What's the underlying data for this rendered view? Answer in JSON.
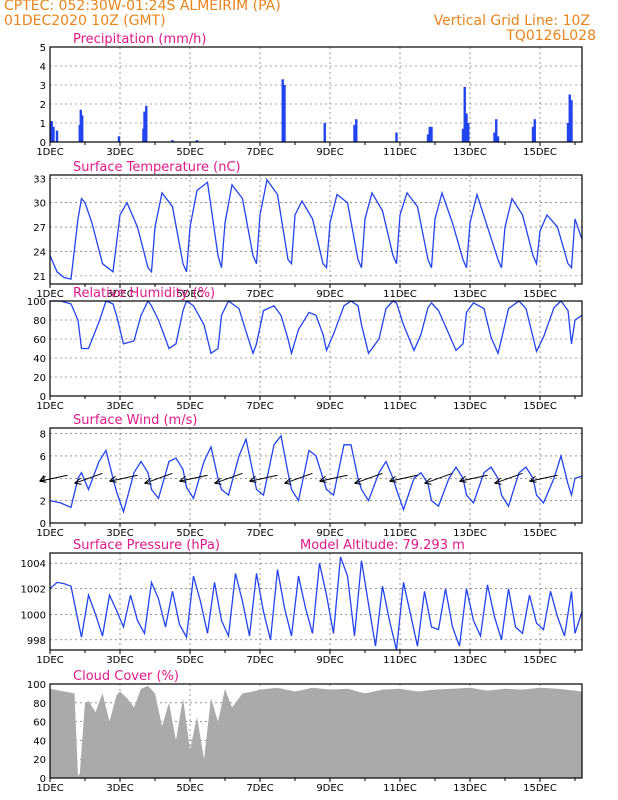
{
  "header": {
    "line1_left": "CPTEC:   052:30W-01:24S   ALMEIRIM (PA)",
    "line2_left": "01DEC2020 10Z (GMT)",
    "line1_right": "Vertical Grid Line: 10Z",
    "line2_right": "TQ0126L028",
    "altitude": "Model Altitude: 79.293 m"
  },
  "colors": {
    "header": "#e8841a",
    "title": "#e0198a",
    "line": "#2244ee",
    "cloud": "#aaaaaa",
    "wind": "#000000"
  },
  "x_axis": {
    "day_range": [
      1,
      16.2
    ],
    "tick_labels": [
      "1DEC",
      "3DEC",
      "5DEC",
      "7DEC",
      "9DEC",
      "11DEC",
      "13DEC",
      "15DEC"
    ],
    "tick_days": [
      1,
      3,
      5,
      7,
      9,
      11,
      13,
      15
    ]
  },
  "chart_data": [
    {
      "type": "bar",
      "title": "Precipitation (mm/h)",
      "ylim": [
        0,
        5
      ],
      "yticks": [
        0,
        1,
        2,
        3,
        4,
        5
      ],
      "bars": [
        [
          1.05,
          1.1
        ],
        [
          1.1,
          0.8
        ],
        [
          1.2,
          0.6
        ],
        [
          1.85,
          0.9
        ],
        [
          1.88,
          1.7
        ],
        [
          1.92,
          1.4
        ],
        [
          2.97,
          0.3
        ],
        [
          3.67,
          0.7
        ],
        [
          3.7,
          1.6
        ],
        [
          3.75,
          1.9
        ],
        [
          4.5,
          0.1
        ],
        [
          5.2,
          0.1
        ],
        [
          7.65,
          3.3
        ],
        [
          7.7,
          3.0
        ],
        [
          8.85,
          1.0
        ],
        [
          9.7,
          0.9
        ],
        [
          9.75,
          1.2
        ],
        [
          10.9,
          0.5
        ],
        [
          11.8,
          0.4
        ],
        [
          11.85,
          0.8
        ],
        [
          11.9,
          0.8
        ],
        [
          12.8,
          0.7
        ],
        [
          12.85,
          2.9
        ],
        [
          12.9,
          1.5
        ],
        [
          12.95,
          1.0
        ],
        [
          13.7,
          0.5
        ],
        [
          13.75,
          1.2
        ],
        [
          13.8,
          0.3
        ],
        [
          14.8,
          0.8
        ],
        [
          14.85,
          1.2
        ],
        [
          15.8,
          1.0
        ],
        [
          15.85,
          2.5
        ],
        [
          15.9,
          2.2
        ]
      ]
    },
    {
      "type": "line",
      "title": "Surface Temperature (nC)",
      "ylim": [
        20,
        33.4
      ],
      "yticks": [
        21,
        24,
        27,
        30,
        33
      ],
      "x": [
        1.0,
        1.2,
        1.4,
        1.6,
        1.8,
        1.9,
        2.0,
        2.2,
        2.5,
        2.8,
        2.9,
        3.0,
        3.2,
        3.5,
        3.8,
        3.9,
        4.0,
        4.2,
        4.5,
        4.8,
        4.9,
        5.0,
        5.2,
        5.5,
        5.8,
        5.9,
        6.0,
        6.2,
        6.5,
        6.8,
        6.9,
        7.0,
        7.2,
        7.5,
        7.8,
        7.9,
        8.0,
        8.2,
        8.5,
        8.8,
        8.9,
        9.0,
        9.2,
        9.5,
        9.8,
        9.9,
        10.0,
        10.2,
        10.5,
        10.8,
        10.9,
        11.0,
        11.2,
        11.5,
        11.8,
        11.9,
        12.0,
        12.2,
        12.5,
        12.8,
        12.9,
        13.0,
        13.2,
        13.5,
        13.8,
        13.9,
        14.0,
        14.2,
        14.5,
        14.8,
        14.9,
        15.0,
        15.2,
        15.5,
        15.8,
        15.9,
        16.0,
        16.2
      ],
      "y": [
        23.5,
        21.5,
        20.8,
        20.6,
        28.0,
        30.5,
        30.0,
        27.5,
        22.5,
        21.5,
        25.0,
        28.5,
        30.0,
        27.0,
        22.0,
        21.5,
        27.0,
        31.2,
        29.5,
        22.5,
        21.5,
        27.0,
        31.5,
        32.5,
        23.5,
        22.0,
        27.5,
        32.2,
        30.5,
        23.5,
        22.5,
        28.5,
        32.8,
        31.0,
        23.0,
        22.5,
        28.5,
        30.2,
        28.0,
        22.5,
        22.0,
        27.5,
        31.0,
        30.0,
        23.0,
        22.0,
        28.0,
        31.2,
        29.0,
        23.5,
        22.5,
        28.5,
        31.2,
        29.5,
        23.0,
        22.0,
        28.0,
        31.2,
        27.5,
        23.0,
        22.0,
        27.5,
        31.0,
        27.0,
        23.0,
        22.0,
        27.0,
        30.5,
        28.5,
        23.5,
        22.5,
        26.5,
        28.5,
        27.0,
        22.5,
        22.0,
        28.0,
        25.5
      ]
    },
    {
      "type": "line",
      "title": "Relative Humidity (%)",
      "ylim": [
        0,
        100
      ],
      "yticks": [
        0,
        20,
        40,
        60,
        80,
        100
      ],
      "x": [
        1.0,
        1.3,
        1.6,
        1.8,
        1.9,
        2.1,
        2.4,
        2.6,
        2.8,
        2.9,
        3.1,
        3.4,
        3.6,
        3.8,
        3.9,
        4.1,
        4.4,
        4.6,
        4.8,
        4.9,
        5.1,
        5.4,
        5.6,
        5.8,
        5.9,
        6.1,
        6.4,
        6.6,
        6.8,
        6.9,
        7.1,
        7.4,
        7.6,
        7.8,
        7.9,
        8.1,
        8.4,
        8.6,
        8.8,
        8.9,
        9.1,
        9.4,
        9.6,
        9.8,
        9.9,
        10.1,
        10.4,
        10.6,
        10.8,
        10.9,
        11.1,
        11.4,
        11.6,
        11.8,
        11.9,
        12.1,
        12.4,
        12.6,
        12.8,
        12.9,
        13.1,
        13.4,
        13.6,
        13.8,
        13.9,
        14.1,
        14.4,
        14.6,
        14.8,
        14.9,
        15.1,
        15.4,
        15.6,
        15.8,
        15.9,
        16.0,
        16.2
      ],
      "y": [
        100,
        100,
        97,
        80,
        50,
        50,
        78,
        100,
        97,
        85,
        55,
        58,
        85,
        100,
        95,
        80,
        50,
        55,
        90,
        100,
        95,
        75,
        45,
        50,
        85,
        100,
        92,
        68,
        45,
        55,
        90,
        95,
        85,
        60,
        45,
        70,
        88,
        85,
        65,
        48,
        65,
        95,
        100,
        95,
        75,
        45,
        60,
        92,
        100,
        98,
        75,
        48,
        65,
        93,
        98,
        90,
        65,
        48,
        55,
        88,
        98,
        92,
        62,
        45,
        60,
        92,
        100,
        92,
        62,
        47,
        62,
        93,
        100,
        90,
        55,
        80,
        85
      ]
    },
    {
      "type": "line",
      "title": "Surface Wind (m/s)",
      "ylim": [
        0,
        8.5
      ],
      "yticks": [
        0,
        2,
        4,
        6,
        8
      ],
      "x": [
        1.0,
        1.3,
        1.6,
        1.8,
        1.9,
        2.1,
        2.4,
        2.6,
        2.8,
        2.9,
        3.1,
        3.4,
        3.6,
        3.8,
        3.9,
        4.1,
        4.4,
        4.6,
        4.8,
        4.9,
        5.1,
        5.4,
        5.6,
        5.8,
        5.9,
        6.1,
        6.4,
        6.6,
        6.8,
        6.9,
        7.1,
        7.4,
        7.6,
        7.8,
        7.9,
        8.1,
        8.4,
        8.6,
        8.8,
        8.9,
        9.1,
        9.4,
        9.6,
        9.8,
        9.9,
        10.1,
        10.4,
        10.6,
        10.8,
        10.9,
        11.1,
        11.4,
        11.6,
        11.8,
        11.9,
        12.1,
        12.4,
        12.6,
        12.8,
        12.9,
        13.1,
        13.4,
        13.6,
        13.8,
        13.9,
        14.1,
        14.4,
        14.6,
        14.8,
        14.9,
        15.1,
        15.4,
        15.6,
        15.8,
        15.9,
        16.0,
        16.2
      ],
      "y": [
        2.0,
        1.8,
        1.4,
        4.0,
        4.5,
        3.0,
        5.5,
        6.5,
        4.0,
        2.8,
        1.0,
        4.5,
        5.5,
        4.5,
        3.0,
        2.2,
        5.5,
        5.8,
        4.8,
        3.2,
        2.2,
        5.5,
        6.8,
        4.0,
        3.0,
        2.5,
        6.0,
        7.5,
        4.5,
        3.0,
        2.5,
        7.0,
        7.8,
        4.5,
        3.0,
        2.0,
        6.5,
        6.0,
        4.0,
        3.0,
        2.5,
        7.0,
        7.0,
        4.0,
        3.0,
        2.0,
        4.5,
        5.5,
        4.0,
        3.0,
        1.2,
        4.0,
        4.5,
        3.5,
        2.0,
        1.5,
        4.0,
        5.0,
        4.0,
        2.5,
        1.8,
        4.5,
        5.0,
        4.0,
        2.5,
        1.5,
        4.5,
        5.0,
        4.0,
        2.5,
        1.8,
        4.0,
        6.0,
        3.5,
        2.5,
        4.0,
        4.2
      ],
      "arrows_x": [
        1.5,
        2.5,
        3.5,
        4.5,
        5.5,
        6.5,
        7.5,
        8.5,
        9.5,
        10.5,
        11.5,
        12.5,
        13.5,
        14.5,
        15.5
      ]
    },
    {
      "type": "line",
      "title": "Surface Pressure (hPa)",
      "ylim": [
        997.2,
        1004.8
      ],
      "yticks": [
        998,
        1000,
        1002,
        1004
      ],
      "x": [
        1.0,
        1.2,
        1.4,
        1.6,
        1.8,
        1.9,
        2.1,
        2.3,
        2.5,
        2.7,
        2.9,
        3.1,
        3.3,
        3.5,
        3.7,
        3.9,
        4.1,
        4.3,
        4.5,
        4.7,
        4.9,
        5.1,
        5.3,
        5.5,
        5.7,
        5.9,
        6.1,
        6.3,
        6.5,
        6.7,
        6.9,
        7.1,
        7.3,
        7.5,
        7.7,
        7.9,
        8.1,
        8.3,
        8.5,
        8.7,
        8.9,
        9.1,
        9.3,
        9.5,
        9.7,
        9.9,
        10.1,
        10.3,
        10.5,
        10.7,
        10.9,
        11.1,
        11.3,
        11.5,
        11.7,
        11.9,
        12.1,
        12.3,
        12.5,
        12.7,
        12.9,
        13.1,
        13.3,
        13.5,
        13.7,
        13.9,
        14.1,
        14.3,
        14.5,
        14.7,
        14.9,
        15.1,
        15.3,
        15.5,
        15.7,
        15.9,
        16.0,
        16.2
      ],
      "y": [
        1002.0,
        1002.5,
        1002.4,
        1002.2,
        999.5,
        998.2,
        1001.5,
        1000.0,
        998.3,
        1001.5,
        1000.3,
        999.0,
        1001.5,
        999.5,
        998.5,
        1002.5,
        1001.2,
        999.0,
        1001.8,
        999.2,
        998.2,
        1003.0,
        1001.0,
        998.5,
        1002.5,
        999.5,
        998.3,
        1003.2,
        1001.0,
        998.3,
        1003.2,
        1000.2,
        998.0,
        1003.5,
        1000.5,
        998.3,
        1003.0,
        1000.5,
        998.5,
        1004.0,
        1001.5,
        998.5,
        1004.5,
        1003.0,
        998.3,
        1004.2,
        1000.8,
        997.5,
        1002.2,
        999.5,
        997.2,
        1002.5,
        1000.0,
        997.5,
        1001.8,
        999.0,
        998.8,
        1002.0,
        999.0,
        997.5,
        1002.0,
        999.5,
        998.3,
        1002.3,
        999.8,
        998.0,
        1002.0,
        999.0,
        998.5,
        1001.5,
        999.3,
        998.8,
        1001.8,
        999.8,
        998.3,
        1001.8,
        998.5,
        1000.2
      ]
    },
    {
      "type": "area",
      "title": "Cloud Cover (%)",
      "ylim": [
        0,
        100
      ],
      "yticks": [
        0,
        20,
        40,
        60,
        80,
        100
      ],
      "x": [
        1.0,
        1.4,
        1.7,
        1.8,
        1.85,
        2.0,
        2.1,
        2.3,
        2.5,
        2.7,
        2.9,
        3.0,
        3.2,
        3.4,
        3.6,
        3.8,
        4.0,
        4.2,
        4.4,
        4.6,
        4.8,
        5.0,
        5.2,
        5.4,
        5.6,
        5.8,
        6.0,
        6.2,
        6.5,
        6.8,
        7.0,
        7.5,
        8.0,
        8.5,
        9.0,
        9.5,
        10.0,
        10.5,
        11.0,
        11.5,
        12.0,
        12.5,
        13.0,
        13.5,
        14.0,
        14.5,
        15.0,
        15.5,
        16.0,
        16.2
      ],
      "y": [
        95,
        92,
        90,
        2,
        5,
        80,
        82,
        70,
        90,
        60,
        88,
        92,
        85,
        75,
        95,
        98,
        90,
        55,
        80,
        40,
        85,
        30,
        65,
        20,
        85,
        60,
        95,
        75,
        90,
        92,
        94,
        96,
        92,
        96,
        94,
        95,
        90,
        94,
        95,
        92,
        94,
        95,
        96,
        93,
        95,
        94,
        96,
        95,
        93,
        92
      ]
    }
  ]
}
